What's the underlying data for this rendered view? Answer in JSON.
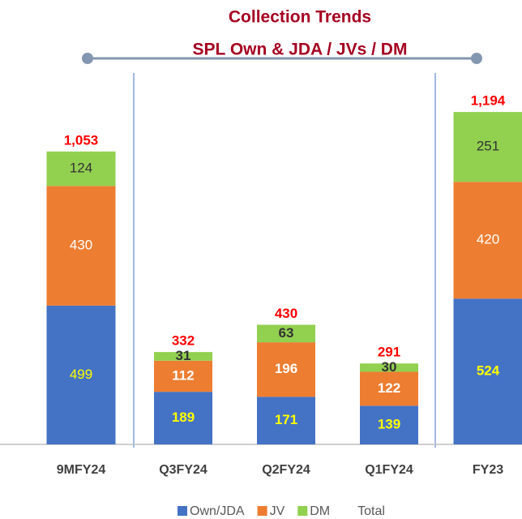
{
  "chart_data": {
    "type": "bar",
    "stacked": true,
    "title": [
      "Collection Trends",
      "SPL Own & JDA / JVs / DM"
    ],
    "categories": [
      "9MFY24",
      "Q3FY24",
      "Q2FY24",
      "Q1FY24",
      "FY23"
    ],
    "series": [
      {
        "name": "Own/JDA",
        "color": "#4472c4",
        "label_color": "#ffff00",
        "values": [
          499,
          189,
          171,
          139,
          524
        ]
      },
      {
        "name": "JV",
        "color": "#ed7d31",
        "label_color": "#ffffff",
        "values": [
          430,
          112,
          196,
          122,
          420
        ]
      },
      {
        "name": "DM",
        "color": "#92d050",
        "label_color": "#333333",
        "values": [
          124,
          31,
          63,
          30,
          251
        ]
      }
    ],
    "totals": {
      "name": "Total",
      "color": "#ff0000",
      "values": [
        1053,
        332,
        430,
        291,
        1194
      ],
      "value_labels": [
        "1,053",
        "332",
        "430",
        "291",
        "1,194"
      ]
    }
  }
}
